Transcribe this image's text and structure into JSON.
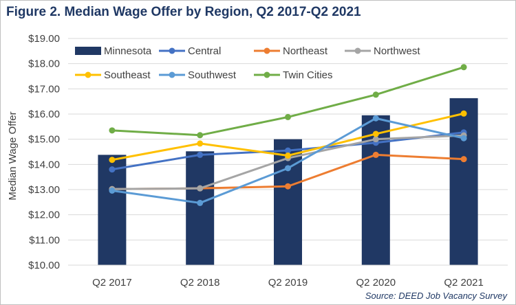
{
  "title": "Figure 2. Median Wage Offer by Region, Q2 2017-Q2 2021",
  "source": "Source: DEED Job Vacancy Survey",
  "chart_data": {
    "type": "bar+line",
    "title": "Figure 2. Median Wage Offer by Region, Q2 2017-Q2 2021",
    "xlabel": "",
    "ylabel": "Median Wage Offer",
    "ylim": [
      10,
      19
    ],
    "yticks": [
      "$10.00",
      "$11.00",
      "$12.00",
      "$13.00",
      "$14.00",
      "$15.00",
      "$16.00",
      "$17.00",
      "$18.00",
      "$19.00"
    ],
    "ytick_values": [
      10,
      11,
      12,
      13,
      14,
      15,
      16,
      17,
      18,
      19
    ],
    "categories": [
      "Q2 2017",
      "Q2 2018",
      "Q2 2019",
      "Q2 2020",
      "Q2 2021"
    ],
    "legend_position": "top",
    "grid": "horizontal",
    "bar_series": {
      "name": "Minnesota",
      "color": "#203864",
      "values": [
        14.38,
        14.52,
        15.0,
        15.95,
        16.63
      ]
    },
    "line_series": [
      {
        "name": "Central",
        "color": "#4472c4",
        "values": [
          13.8,
          14.38,
          14.55,
          14.86,
          15.27
        ]
      },
      {
        "name": "Northeast",
        "color": "#ed7d31",
        "values": [
          13.02,
          13.05,
          13.13,
          14.38,
          14.21
        ]
      },
      {
        "name": "Northwest",
        "color": "#a5a5a5",
        "values": [
          13.02,
          13.05,
          14.25,
          15.0,
          15.15
        ]
      },
      {
        "name": "Southeast",
        "color": "#ffc000",
        "values": [
          14.18,
          14.83,
          14.35,
          15.21,
          16.02
        ]
      },
      {
        "name": "Southwest",
        "color": "#5b9bd5",
        "values": [
          12.96,
          12.47,
          13.85,
          15.83,
          15.04
        ]
      },
      {
        "name": "Twin Cities",
        "color": "#70ad47",
        "values": [
          15.35,
          15.16,
          15.88,
          16.77,
          17.86
        ]
      }
    ]
  }
}
